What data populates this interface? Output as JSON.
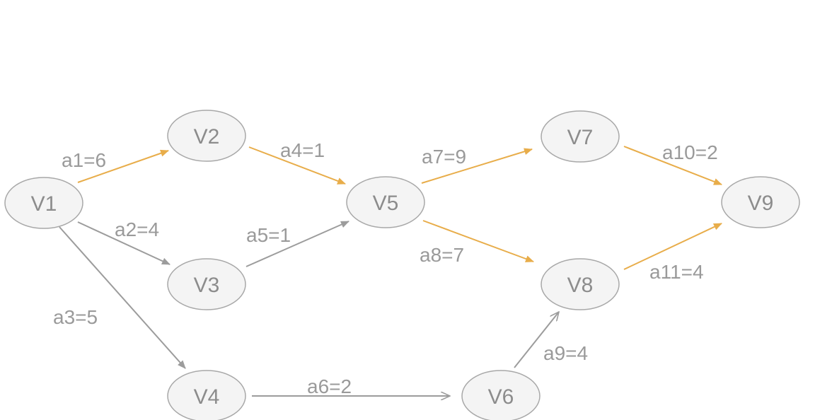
{
  "colors": {
    "critical": "#e8ad4a",
    "normal": "#9c9c9c"
  },
  "nodes": [
    {
      "id": "V1",
      "label": "V1"
    },
    {
      "id": "V2",
      "label": "V2"
    },
    {
      "id": "V3",
      "label": "V3"
    },
    {
      "id": "V4",
      "label": "V4"
    },
    {
      "id": "V5",
      "label": "V5"
    },
    {
      "id": "V6",
      "label": "V6"
    },
    {
      "id": "V7",
      "label": "V7"
    },
    {
      "id": "V8",
      "label": "V8"
    },
    {
      "id": "V9",
      "label": "V9"
    }
  ],
  "edges": [
    {
      "id": "a1",
      "from": "V1",
      "to": "V2",
      "label": "a1=6",
      "weight": 6,
      "critical": true
    },
    {
      "id": "a2",
      "from": "V1",
      "to": "V3",
      "label": "a2=4",
      "weight": 4,
      "critical": false
    },
    {
      "id": "a3",
      "from": "V1",
      "to": "V4",
      "label": "a3=5",
      "weight": 5,
      "critical": false
    },
    {
      "id": "a4",
      "from": "V2",
      "to": "V5",
      "label": "a4=1",
      "weight": 1,
      "critical": true
    },
    {
      "id": "a5",
      "from": "V3",
      "to": "V5",
      "label": "a5=1",
      "weight": 1,
      "critical": false
    },
    {
      "id": "a6",
      "from": "V4",
      "to": "V6",
      "label": "a6=2",
      "weight": 2,
      "critical": false
    },
    {
      "id": "a7",
      "from": "V5",
      "to": "V7",
      "label": "a7=9",
      "weight": 9,
      "critical": true
    },
    {
      "id": "a8",
      "from": "V5",
      "to": "V8",
      "label": "a8=7",
      "weight": 7,
      "critical": true
    },
    {
      "id": "a9",
      "from": "V6",
      "to": "V8",
      "label": "a9=4",
      "weight": 4,
      "critical": false
    },
    {
      "id": "a10",
      "from": "V7",
      "to": "V9",
      "label": "a10=2",
      "weight": 2,
      "critical": true
    },
    {
      "id": "a11",
      "from": "V8",
      "to": "V9",
      "label": "a11=4",
      "weight": 4,
      "critical": true
    }
  ]
}
